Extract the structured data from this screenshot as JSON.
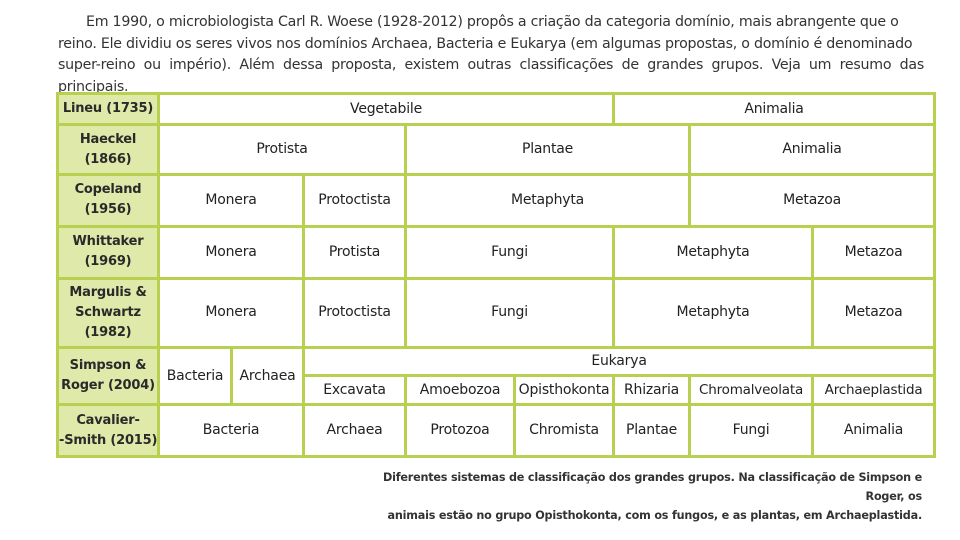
{
  "intro": {
    "line1": "Em 1990, o microbiologista Carl R. Woese (1928-2012) propôs a criação da categoria domínio, mais abrangente que o",
    "line2": "reino. Ele dividiu os seres vivos nos domínios Archaea, Bacteria e Eukarya (em algumas propostas, o domínio é denominado",
    "line3": "super-reino ou império). Além dessa proposta, existem outras classificações de grandes grupos. Veja um resumo das principais."
  },
  "table": {
    "linneu": {
      "author": "Lineu (1735)",
      "cells": [
        "Vegetabile",
        "Animalia"
      ]
    },
    "haeckel": {
      "author_l1": "Haeckel",
      "author_l2": "(1866)",
      "cells": [
        "Protista",
        "Plantae",
        "Animalia"
      ]
    },
    "copeland": {
      "author_l1": "Copeland",
      "author_l2": "(1956)",
      "cells": [
        "Monera",
        "Protoctista",
        "Metaphyta",
        "Metazoa"
      ]
    },
    "whittaker": {
      "author_l1": "Whittaker",
      "author_l2": "(1969)",
      "cells": [
        "Monera",
        "Protista",
        "Fungi",
        "Metaphyta",
        "Metazoa"
      ]
    },
    "margulis": {
      "author_l1": "Margulis &",
      "author_l2": "Schwartz",
      "author_l3": "(1982)",
      "cells": [
        "Monera",
        "Protoctista",
        "Fungi",
        "Metaphyta",
        "Metazoa"
      ]
    },
    "simpson": {
      "author_l1": "Simpson &",
      "author_l2": "Roger (2004)",
      "bacteria": "Bacteria",
      "archaea": "Archaea",
      "eukarya": "Eukarya",
      "subgroups": [
        "Excavata",
        "Amoebozoa",
        "Opisthokonta",
        "Rhizaria",
        "Chromalveolata",
        "Archaeplastida"
      ]
    },
    "cavalier": {
      "author_l1": "Cavalier-",
      "author_l2": "-Smith (2015)",
      "cells": [
        "Bacteria",
        "Archaea",
        "Protozoa",
        "Chromista",
        "Plantae",
        "Fungi",
        "Animalia"
      ]
    }
  },
  "caption": {
    "line1": "Diferentes sistemas de classificação dos grandes grupos. Na classificação de Simpson e Roger, os",
    "line2": "animais estão no grupo Opisthokonta, com os fungos, e as plantas, em Archaeplastida."
  },
  "colors": {
    "border": "#b7d04f",
    "header_fill": "#dfe9a9"
  }
}
